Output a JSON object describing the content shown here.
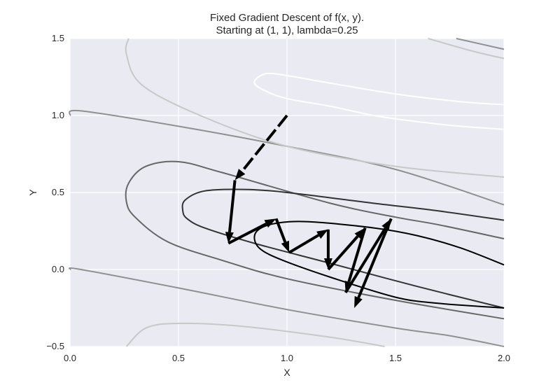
{
  "chart_data": {
    "type": "line",
    "title": "Fixed Gradient Descent of f(x, y).",
    "subtitle": "Starting at (1, 1), lambda=0.25",
    "xlabel": "X",
    "ylabel": "Y",
    "xlim": [
      0.0,
      2.0
    ],
    "ylim": [
      -0.5,
      1.5
    ],
    "xticks": [
      "0.0",
      "0.5",
      "1.0",
      "1.5",
      "2.0"
    ],
    "yticks": [
      "1.5",
      "1.0",
      "0.5",
      "0.0",
      "−0.5"
    ],
    "grid": true,
    "background": "#eaeaf2",
    "gridColor": "#ffffff",
    "arrowColor": "#000000",
    "path": [
      [
        1.0,
        1.0
      ],
      [
        0.76,
        0.58
      ],
      [
        0.73,
        0.17
      ],
      [
        0.95,
        0.33
      ],
      [
        1.01,
        0.11
      ],
      [
        1.19,
        0.26
      ],
      [
        1.19,
        0.0
      ],
      [
        1.36,
        0.27
      ],
      [
        1.27,
        -0.15
      ],
      [
        1.48,
        0.33
      ],
      [
        1.31,
        -0.25
      ]
    ],
    "contours": [
      {
        "points": [
          [
            0.26,
            -0.5
          ],
          [
            0.35,
            -0.38
          ],
          [
            0.5,
            -0.35
          ],
          [
            0.8,
            -0.37
          ],
          [
            1.2,
            -0.44
          ],
          [
            1.45,
            -0.5
          ]
        ],
        "color": "#c8c8c8"
      },
      {
        "points": [
          [
            0.0,
            0.0
          ],
          [
            0.05,
            0.0
          ],
          [
            0.5,
            -0.12
          ],
          [
            1.0,
            -0.26
          ],
          [
            1.5,
            -0.38
          ],
          [
            1.75,
            -0.43
          ],
          [
            2.0,
            -0.5
          ]
        ],
        "color": "#909090"
      },
      {
        "points": [
          [
            0.0,
            1.0
          ],
          [
            0.05,
            1.03
          ],
          [
            0.5,
            0.93
          ],
          [
            1.0,
            0.8
          ],
          [
            1.5,
            0.65
          ],
          [
            2.0,
            0.42
          ]
        ],
        "color": "#909090"
      },
      {
        "points": [
          [
            1.78,
            1.5
          ],
          [
            2.0,
            1.43
          ]
        ],
        "color": "#909090"
      },
      {
        "points": [
          [
            0.27,
            1.5
          ],
          [
            0.26,
            1.4
          ],
          [
            0.33,
            1.2
          ],
          [
            0.6,
            1.0
          ],
          [
            1.0,
            0.8
          ],
          [
            1.5,
            0.67
          ],
          [
            2.0,
            0.6
          ]
        ],
        "color": "#c8c8c8"
      },
      {
        "points": [
          [
            1.65,
            1.5
          ],
          [
            1.85,
            1.42
          ],
          [
            2.0,
            1.37
          ]
        ],
        "color": "#c8c8c8"
      },
      {
        "points": [
          [
            2.0,
            1.07
          ],
          [
            1.8,
            1.09
          ],
          [
            1.5,
            1.14
          ],
          [
            1.2,
            1.21
          ],
          [
            0.95,
            1.27
          ],
          [
            0.88,
            1.26
          ],
          [
            0.85,
            1.21
          ],
          [
            0.9,
            1.16
          ],
          [
            1.0,
            1.11
          ],
          [
            1.2,
            1.06
          ],
          [
            1.4,
            1.0
          ],
          [
            1.6,
            0.96
          ],
          [
            1.8,
            0.93
          ],
          [
            2.0,
            0.91
          ]
        ],
        "color": "#ffffff"
      },
      {
        "points": [
          [
            2.0,
            0.2
          ],
          [
            1.7,
            0.29
          ],
          [
            1.5,
            0.34
          ],
          [
            1.2,
            0.43
          ],
          [
            0.7,
            0.63
          ],
          [
            0.5,
            0.7
          ],
          [
            0.35,
            0.67
          ],
          [
            0.27,
            0.56
          ],
          [
            0.26,
            0.44
          ],
          [
            0.3,
            0.34
          ],
          [
            0.45,
            0.18
          ],
          [
            0.7,
            0.06
          ],
          [
            1.0,
            -0.06
          ],
          [
            1.5,
            -0.2
          ],
          [
            2.0,
            -0.32
          ]
        ],
        "color": "#666666"
      },
      {
        "points": [
          [
            2.0,
            0.32
          ],
          [
            1.7,
            0.38
          ],
          [
            1.4,
            0.43
          ],
          [
            1.0,
            0.5
          ],
          [
            0.8,
            0.52
          ],
          [
            0.62,
            0.51
          ],
          [
            0.53,
            0.45
          ],
          [
            0.52,
            0.38
          ],
          [
            0.54,
            0.33
          ],
          [
            0.62,
            0.27
          ],
          [
            0.85,
            0.17
          ],
          [
            1.2,
            0.04
          ],
          [
            1.6,
            -0.11
          ],
          [
            2.0,
            -0.25
          ]
        ],
        "color": "#333333"
      },
      {
        "points": [
          [
            2.0,
            0.03
          ],
          [
            1.8,
            0.14
          ],
          [
            1.6,
            0.22
          ],
          [
            1.4,
            0.27
          ],
          [
            1.1,
            0.31
          ],
          [
            0.95,
            0.3
          ],
          [
            0.87,
            0.26
          ],
          [
            0.85,
            0.2
          ],
          [
            0.88,
            0.13
          ],
          [
            0.98,
            0.06
          ],
          [
            1.2,
            -0.05
          ],
          [
            1.5,
            -0.18
          ],
          [
            1.7,
            -0.22
          ],
          [
            2.0,
            -0.25
          ]
        ],
        "color": "#000000"
      }
    ]
  }
}
